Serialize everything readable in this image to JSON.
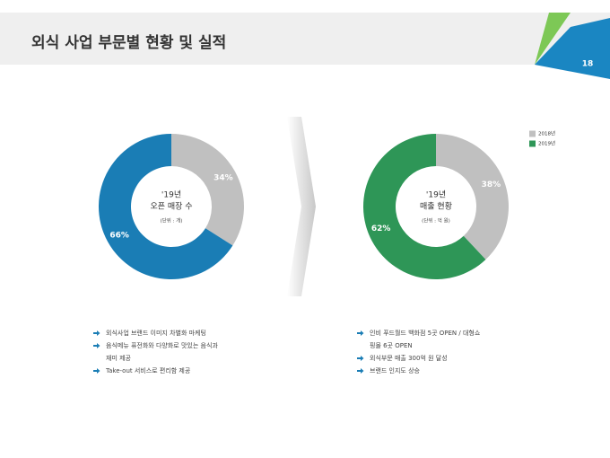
{
  "header": {
    "title": "외식 사업 부문별 현황 및 실적",
    "page_number": "18"
  },
  "chart_data": [
    {
      "type": "pie",
      "donut": true,
      "title": "'19년",
      "subtitle": "오픈 매장 수",
      "unit": "(단위 : 개)",
      "categories": [
        "2018년",
        "2019년"
      ],
      "values": [
        34,
        66
      ],
      "value_labels": [
        "34%",
        "66%"
      ],
      "colors": [
        "#c0c0c0",
        "#1a7db5"
      ]
    },
    {
      "type": "pie",
      "donut": true,
      "title": "'19년",
      "subtitle": "매출 현황",
      "unit": "(단위 : 억 원)",
      "categories": [
        "2018년",
        "2019년"
      ],
      "values": [
        38,
        62
      ],
      "value_labels": [
        "38%",
        "62%"
      ],
      "colors": [
        "#c0c0c0",
        "#2e9657"
      ],
      "legend": "upper right"
    }
  ],
  "bullets": {
    "left": [
      [
        "외식사업 브랜드 이미지 차별화 마케팅"
      ],
      [
        "음식메뉴 퓨전화와 다양화로 맛있는 음식과",
        "재미 제공"
      ],
      [
        "Take-out 서비스로 편리함 제공"
      ]
    ],
    "right": [
      [
        "인비 푸드월드 백화점 5곳 OPEN / 대형쇼",
        "핑몰 6곳 OPEN"
      ],
      [
        "외식부문 매출 300억 원 달성"
      ],
      [
        "브랜드 인지도 상승"
      ]
    ]
  }
}
